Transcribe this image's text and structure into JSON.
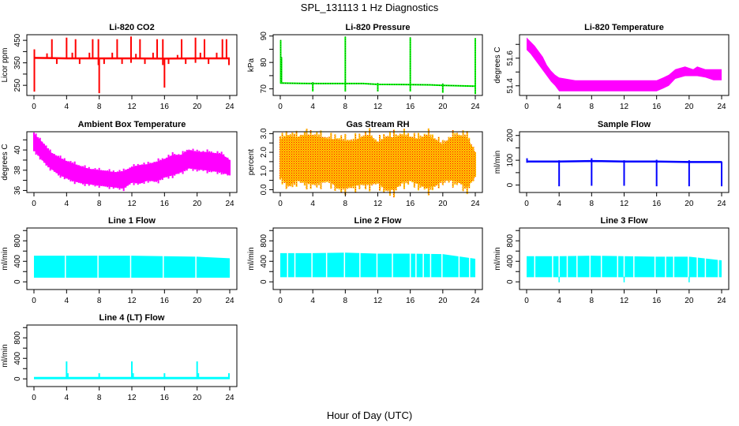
{
  "figure": {
    "title": "SPL_131113  1 Hz Diagnostics",
    "xlabel": "Hour of Day (UTC)"
  },
  "chart_data": [
    {
      "id": "co2",
      "type": "line",
      "title": "Li-820 CO2",
      "ylabel": "Licor ppm",
      "color": "#ff0000",
      "style": "solid",
      "xlim": [
        0,
        24
      ],
      "ylim": [
        205,
        475
      ],
      "xticks": [
        0,
        4,
        8,
        12,
        16,
        20,
        24
      ],
      "yticks": [
        250,
        300,
        350,
        400,
        450
      ],
      "yticklabels": [
        "250",
        "",
        "350",
        "",
        "450"
      ],
      "baseline": [
        [
          0,
          372
        ],
        [
          2,
          371
        ],
        [
          4,
          370
        ],
        [
          8,
          370
        ],
        [
          12,
          370
        ],
        [
          16,
          369
        ],
        [
          20,
          370
        ],
        [
          24,
          370
        ]
      ],
      "spikes": [
        {
          "x": 0.05,
          "min": 222,
          "max": 410
        },
        {
          "x": 1.6,
          "min": 370,
          "max": 392
        },
        {
          "x": 2.2,
          "min": 370,
          "max": 455
        },
        {
          "x": 2.8,
          "min": 345,
          "max": 370
        },
        {
          "x": 4.0,
          "min": 370,
          "max": 462
        },
        {
          "x": 4.7,
          "min": 370,
          "max": 395
        },
        {
          "x": 5.1,
          "min": 370,
          "max": 455
        },
        {
          "x": 5.6,
          "min": 345,
          "max": 370
        },
        {
          "x": 6.8,
          "min": 370,
          "max": 395
        },
        {
          "x": 7.2,
          "min": 370,
          "max": 455
        },
        {
          "x": 7.9,
          "min": 340,
          "max": 455
        },
        {
          "x": 8.0,
          "min": 215,
          "max": 370
        },
        {
          "x": 8.6,
          "min": 345,
          "max": 370
        },
        {
          "x": 9.6,
          "min": 370,
          "max": 395
        },
        {
          "x": 10.2,
          "min": 370,
          "max": 455
        },
        {
          "x": 10.8,
          "min": 345,
          "max": 370
        },
        {
          "x": 11.9,
          "min": 350,
          "max": 467
        },
        {
          "x": 12.5,
          "min": 370,
          "max": 390
        },
        {
          "x": 13.0,
          "min": 370,
          "max": 455
        },
        {
          "x": 13.6,
          "min": 345,
          "max": 370
        },
        {
          "x": 14.6,
          "min": 370,
          "max": 395
        },
        {
          "x": 15.1,
          "min": 370,
          "max": 455
        },
        {
          "x": 15.8,
          "min": 340,
          "max": 455
        },
        {
          "x": 16.0,
          "min": 240,
          "max": 370
        },
        {
          "x": 16.5,
          "min": 345,
          "max": 370
        },
        {
          "x": 17.6,
          "min": 370,
          "max": 385
        },
        {
          "x": 18.1,
          "min": 370,
          "max": 455
        },
        {
          "x": 18.6,
          "min": 345,
          "max": 370
        },
        {
          "x": 19.8,
          "min": 350,
          "max": 462
        },
        {
          "x": 20.4,
          "min": 370,
          "max": 395
        },
        {
          "x": 20.9,
          "min": 370,
          "max": 455
        },
        {
          "x": 21.4,
          "min": 345,
          "max": 370
        },
        {
          "x": 22.4,
          "min": 370,
          "max": 395
        },
        {
          "x": 23.1,
          "min": 370,
          "max": 455
        },
        {
          "x": 23.6,
          "min": 370,
          "max": 455
        },
        {
          "x": 23.9,
          "min": 340,
          "max": 370
        }
      ]
    },
    {
      "id": "pressure",
      "type": "line",
      "title": "Li-820 Pressure",
      "ylabel": "kPa",
      "color": "#00ff00",
      "style": "dotted",
      "xlim": [
        0,
        24
      ],
      "ylim": [
        67.5,
        90.5
      ],
      "xticks": [
        0,
        4,
        8,
        12,
        16,
        20,
        24
      ],
      "yticks": [
        70,
        75,
        80,
        85,
        90
      ],
      "yticklabels": [
        "70",
        "",
        "80",
        "",
        "90"
      ],
      "baseline": [
        [
          0,
          72.2
        ],
        [
          4,
          72.0
        ],
        [
          8,
          72.0
        ],
        [
          10.2,
          72.0
        ],
        [
          12,
          71.7
        ],
        [
          16,
          71.6
        ],
        [
          18.5,
          71.5
        ],
        [
          20,
          71.3
        ],
        [
          24,
          71.0
        ]
      ],
      "spikes": [
        {
          "x": 0.05,
          "min": 72,
          "max": 88.5
        },
        {
          "x": 0.15,
          "min": 72,
          "max": 82
        },
        {
          "x": 4.0,
          "min": 69,
          "max": 72.5
        },
        {
          "x": 8.0,
          "min": 69,
          "max": 89.8
        },
        {
          "x": 12.0,
          "min": 69,
          "max": 72.2
        },
        {
          "x": 16.0,
          "min": 69,
          "max": 89.5
        },
        {
          "x": 20.0,
          "min": 68.5,
          "max": 72
        },
        {
          "x": 24.0,
          "min": 68,
          "max": 89.2
        }
      ]
    },
    {
      "id": "li820-temp",
      "type": "band",
      "title": "Li-820 Temperature",
      "ylabel": "degrees C",
      "color": "#ff00ff",
      "xlim": [
        0,
        24
      ],
      "ylim": [
        51.33,
        51.77
      ],
      "xticks": [
        0,
        4,
        8,
        12,
        16,
        20,
        24
      ],
      "yticks": [
        51.4,
        51.5,
        51.6,
        51.7
      ],
      "yticklabels": [
        "51.4",
        "",
        "51.6",
        ""
      ],
      "band": [
        [
          0,
          51.66,
          51.75
        ],
        [
          0.5,
          51.63,
          51.72
        ],
        [
          1,
          51.59,
          51.69
        ],
        [
          1.5,
          51.55,
          51.65
        ],
        [
          2,
          51.51,
          51.61
        ],
        [
          2.5,
          51.47,
          51.55
        ],
        [
          3,
          51.43,
          51.51
        ],
        [
          3.5,
          51.4,
          51.48
        ],
        [
          4,
          51.36,
          51.46
        ],
        [
          6,
          51.36,
          51.44
        ],
        [
          8,
          51.36,
          51.44
        ],
        [
          10,
          51.36,
          51.44
        ],
        [
          12,
          51.36,
          51.44
        ],
        [
          14,
          51.36,
          51.44
        ],
        [
          16,
          51.36,
          51.44
        ],
        [
          16.8,
          51.38,
          51.46
        ],
        [
          17.5,
          51.4,
          51.48
        ],
        [
          18.3,
          51.45,
          51.52
        ],
        [
          19.5,
          51.47,
          51.54
        ],
        [
          20.5,
          51.47,
          51.52
        ],
        [
          21,
          51.47,
          51.54
        ],
        [
          22,
          51.46,
          51.52
        ],
        [
          23,
          51.44,
          51.52
        ],
        [
          24,
          51.44,
          51.52
        ]
      ]
    },
    {
      "id": "ambient-temp",
      "type": "band",
      "title": "Ambient Box Temperature",
      "ylabel": "degrees C",
      "color": "#ff00ff",
      "xlim": [
        0,
        24
      ],
      "ylim": [
        35.8,
        41.8
      ],
      "xticks": [
        0,
        4,
        8,
        12,
        16,
        20,
        24
      ],
      "yticks": [
        36,
        37,
        38,
        39,
        40,
        41
      ],
      "yticklabels": [
        "36",
        "",
        "38",
        "",
        "40",
        ""
      ],
      "band": [
        [
          0,
          40.0,
          41.6
        ],
        [
          1,
          39.0,
          40.8
        ],
        [
          2,
          38.2,
          39.8
        ],
        [
          3,
          37.6,
          39.3
        ],
        [
          4,
          37.2,
          38.9
        ],
        [
          5,
          36.9,
          38.6
        ],
        [
          6,
          36.7,
          38.3
        ],
        [
          7,
          36.6,
          38.1
        ],
        [
          8,
          36.5,
          38.0
        ],
        [
          9,
          36.4,
          37.9
        ],
        [
          10,
          36.3,
          37.8
        ],
        [
          11,
          36.2,
          37.9
        ],
        [
          12,
          36.8,
          38.3
        ],
        [
          13,
          36.7,
          38.5
        ],
        [
          14,
          37.0,
          38.6
        ],
        [
          15,
          36.9,
          38.8
        ],
        [
          16,
          37.3,
          39.1
        ],
        [
          17,
          37.5,
          39.5
        ],
        [
          18,
          37.8,
          39.5
        ],
        [
          19,
          38.2,
          40.0
        ],
        [
          20,
          38.1,
          39.8
        ],
        [
          21,
          38.0,
          39.8
        ],
        [
          22,
          37.9,
          39.7
        ],
        [
          23,
          37.8,
          39.6
        ],
        [
          24,
          37.5,
          39.0
        ]
      ]
    },
    {
      "id": "gas-rh",
      "type": "band",
      "title": "Gas Stream RH",
      "ylabel": "percent",
      "color": "#ffcc00",
      "color2": "#ff0000",
      "xlim": [
        0,
        24
      ],
      "ylim": [
        -0.15,
        3.1
      ],
      "xticks": [
        0,
        4,
        8,
        12,
        16,
        20,
        24
      ],
      "yticks": [
        0.0,
        0.5,
        1.0,
        1.5,
        2.0,
        2.5,
        3.0
      ],
      "yticklabels": [
        "0.0",
        "",
        "1.0",
        "",
        "2.0",
        "",
        "3.0"
      ],
      "band": [
        [
          0,
          0.7,
          2.7
        ],
        [
          1,
          0.2,
          2.9
        ],
        [
          2,
          0.5,
          2.8
        ],
        [
          3,
          0.4,
          2.9
        ],
        [
          4,
          0.3,
          2.9
        ],
        [
          5,
          0.4,
          2.8
        ],
        [
          6,
          0.5,
          2.7
        ],
        [
          7,
          0.1,
          2.7
        ],
        [
          8,
          0.1,
          2.6
        ],
        [
          9,
          0.2,
          2.6
        ],
        [
          10,
          0.3,
          2.8
        ],
        [
          11,
          0.3,
          2.9
        ],
        [
          12,
          0.4,
          2.5
        ],
        [
          13,
          0.0,
          2.8
        ],
        [
          14,
          0.0,
          2.8
        ],
        [
          15,
          0.4,
          2.9
        ],
        [
          16,
          0.5,
          2.8
        ],
        [
          17,
          0.3,
          2.7
        ],
        [
          18,
          0.1,
          2.9
        ],
        [
          19,
          0.2,
          2.7
        ],
        [
          20,
          0.5,
          2.4
        ],
        [
          21,
          0.5,
          2.8
        ],
        [
          22,
          0.4,
          2.9
        ],
        [
          23,
          0.1,
          2.8
        ],
        [
          24,
          0.7,
          2.0
        ]
      ]
    },
    {
      "id": "sample-flow",
      "type": "line",
      "title": "Sample Flow",
      "ylabel": "ml/min",
      "color": "#0000ff",
      "style": "solid",
      "xlim": [
        0,
        24
      ],
      "ylim": [
        -30,
        215
      ],
      "xticks": [
        0,
        4,
        8,
        12,
        16,
        20,
        24
      ],
      "yticks": [
        0,
        50,
        100,
        150,
        200
      ],
      "yticklabels": [
        "0",
        "",
        "100",
        "",
        "200"
      ],
      "baseline": [
        [
          0,
          95
        ],
        [
          4,
          95
        ],
        [
          8,
          97
        ],
        [
          12,
          95
        ],
        [
          16,
          95
        ],
        [
          20,
          93
        ],
        [
          24,
          93
        ]
      ],
      "spikes": [
        {
          "x": 0.05,
          "min": 90,
          "max": 108
        },
        {
          "x": 4.0,
          "min": -5,
          "max": 100
        },
        {
          "x": 8.0,
          "min": -3,
          "max": 108
        },
        {
          "x": 12.0,
          "min": -3,
          "max": 100
        },
        {
          "x": 16.0,
          "min": -5,
          "max": 102
        },
        {
          "x": 20.0,
          "min": -5,
          "max": 100
        },
        {
          "x": 24.0,
          "min": -5,
          "max": 95
        }
      ]
    },
    {
      "id": "line1-flow",
      "type": "band",
      "title": "Line 1 Flow",
      "ylabel": "ml/min",
      "color": "#00ffff",
      "xlim": [
        0,
        24
      ],
      "ylim": [
        -150,
        1050
      ],
      "xticks": [
        0,
        4,
        8,
        12,
        16,
        20,
        24
      ],
      "yticks": [
        0,
        200,
        400,
        600,
        800,
        1000
      ],
      "yticklabels": [
        "0",
        "",
        "400",
        "",
        "800",
        ""
      ],
      "band": [
        [
          0,
          80,
          510
        ],
        [
          4,
          80,
          510
        ],
        [
          8,
          80,
          510
        ],
        [
          12,
          80,
          510
        ],
        [
          16,
          80,
          500
        ],
        [
          20,
          80,
          490
        ],
        [
          24,
          80,
          460
        ]
      ],
      "gaps": [
        3.85,
        7.85,
        11.85,
        15.85,
        19.85
      ]
    },
    {
      "id": "line2-flow",
      "type": "band",
      "title": "Line 2 Flow",
      "ylabel": "ml/min",
      "color": "#00ffff",
      "xlim": [
        0,
        24
      ],
      "ylim": [
        -150,
        1050
      ],
      "xticks": [
        0,
        4,
        8,
        12,
        16,
        20,
        24
      ],
      "yticks": [
        0,
        200,
        400,
        600,
        800,
        1000
      ],
      "yticklabels": [
        "0",
        "",
        "400",
        "",
        "800",
        ""
      ],
      "band": [
        [
          0,
          90,
          560
        ],
        [
          4,
          90,
          560
        ],
        [
          8,
          90,
          570
        ],
        [
          12,
          90,
          550
        ],
        [
          16,
          90,
          550
        ],
        [
          20,
          90,
          540
        ],
        [
          24,
          90,
          450
        ]
      ],
      "gaps": [
        0.9,
        1.8,
        3.9,
        5.7,
        7.9,
        9.8,
        11.9,
        13.8,
        16.0,
        16.7,
        17.6,
        18.5,
        19.9,
        22.0,
        23.3
      ]
    },
    {
      "id": "line3-flow",
      "type": "band",
      "title": "Line 3 Flow",
      "ylabel": "ml/min",
      "color": "#00ffff",
      "xlim": [
        0,
        24
      ],
      "ylim": [
        -150,
        1050
      ],
      "xticks": [
        0,
        4,
        8,
        12,
        16,
        20,
        24
      ],
      "yticks": [
        0,
        200,
        400,
        600,
        800,
        1000
      ],
      "yticklabels": [
        "0",
        "",
        "400",
        "",
        "800",
        ""
      ],
      "band": [
        [
          0,
          90,
          500
        ],
        [
          4,
          90,
          500
        ],
        [
          8,
          90,
          510
        ],
        [
          12,
          90,
          500
        ],
        [
          16,
          90,
          490
        ],
        [
          20,
          90,
          490
        ],
        [
          24,
          90,
          420
        ]
      ],
      "gaps": [
        1.0,
        3.2,
        4.0,
        5.0,
        6.2,
        7.8,
        9.2,
        11.2,
        12.0,
        13.2,
        15.8,
        17.1,
        18.1,
        19.9,
        21.0,
        22.0,
        23.6
      ],
      "dips": [
        4.0,
        12.0,
        20.0
      ]
    },
    {
      "id": "line4-flow",
      "type": "line",
      "title": "Line 4 (LT) Flow",
      "ylabel": "ml/min",
      "color": "#00ffff",
      "style": "solid",
      "xlim": [
        0,
        24
      ],
      "ylim": [
        -150,
        1050
      ],
      "xticks": [
        0,
        4,
        8,
        12,
        16,
        20,
        24
      ],
      "yticks": [
        0,
        200,
        400,
        600,
        800,
        1000
      ],
      "yticklabels": [
        "0",
        "",
        "400",
        "",
        "800",
        ""
      ],
      "baseline": [
        [
          0,
          15
        ],
        [
          24,
          15
        ]
      ],
      "spikes": [
        {
          "x": 4.0,
          "min": 15,
          "max": 340
        },
        {
          "x": 4.15,
          "min": 15,
          "max": 110
        },
        {
          "x": 8.0,
          "min": 15,
          "max": 110
        },
        {
          "x": 12.0,
          "min": 15,
          "max": 340
        },
        {
          "x": 12.15,
          "min": 15,
          "max": 110
        },
        {
          "x": 16.0,
          "min": 15,
          "max": 110
        },
        {
          "x": 20.0,
          "min": 15,
          "max": 340
        },
        {
          "x": 20.15,
          "min": 15,
          "max": 110
        },
        {
          "x": 23.9,
          "min": 15,
          "max": 110
        }
      ]
    }
  ]
}
